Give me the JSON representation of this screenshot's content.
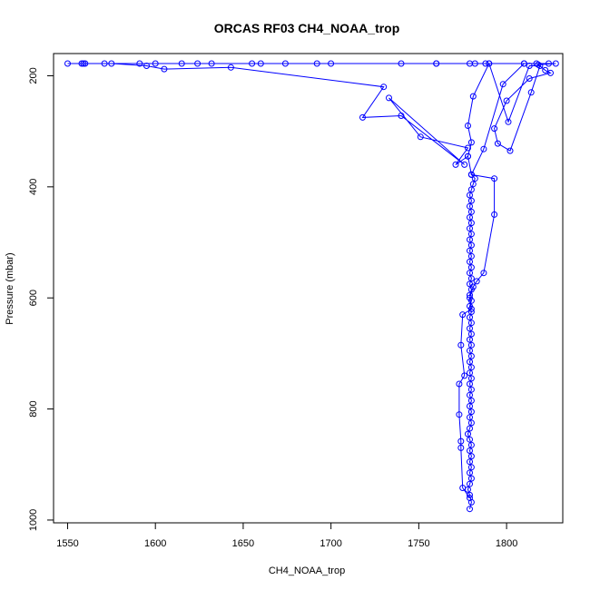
{
  "chart_data": {
    "type": "line",
    "title": "ORCAS RF03 CH4_NOAA_trop",
    "xlabel": "CH4_NOAA_trop",
    "ylabel": "Pressure (mbar)",
    "xlim": [
      1542,
      1832
    ],
    "ylim": [
      1005,
      160
    ],
    "y_reversed": true,
    "grid": false,
    "legend": "none",
    "x_ticks": [
      1550,
      1600,
      1650,
      1700,
      1750,
      1800
    ],
    "y_ticks": [
      200,
      400,
      600,
      800,
      1000
    ],
    "series": [
      {
        "color": "#0000ff",
        "marker": "open-circle",
        "points": [
          [
            1779,
            980
          ],
          [
            1780,
            968
          ],
          [
            1779,
            955
          ],
          [
            1778,
            945
          ],
          [
            1779,
            935
          ],
          [
            1780,
            925
          ],
          [
            1779,
            915
          ],
          [
            1780,
            905
          ],
          [
            1779,
            895
          ],
          [
            1780,
            885
          ],
          [
            1779,
            875
          ],
          [
            1780,
            865
          ],
          [
            1779,
            855
          ],
          [
            1778,
            845
          ],
          [
            1779,
            835
          ],
          [
            1780,
            825
          ],
          [
            1779,
            815
          ],
          [
            1780,
            805
          ],
          [
            1779,
            795
          ],
          [
            1780,
            785
          ],
          [
            1779,
            775
          ],
          [
            1780,
            765
          ],
          [
            1779,
            755
          ],
          [
            1780,
            745
          ],
          [
            1779,
            735
          ],
          [
            1780,
            725
          ],
          [
            1779,
            715
          ],
          [
            1780,
            705
          ],
          [
            1779,
            695
          ],
          [
            1780,
            685
          ],
          [
            1779,
            675
          ],
          [
            1780,
            665
          ],
          [
            1779,
            655
          ],
          [
            1780,
            645
          ],
          [
            1779,
            635
          ],
          [
            1780,
            625
          ],
          [
            1779,
            615
          ],
          [
            1780,
            605
          ],
          [
            1779,
            595
          ],
          [
            1780,
            585
          ],
          [
            1779,
            575
          ],
          [
            1780,
            565
          ],
          [
            1779,
            555
          ],
          [
            1780,
            545
          ],
          [
            1779,
            535
          ],
          [
            1780,
            525
          ],
          [
            1779,
            515
          ],
          [
            1780,
            505
          ],
          [
            1779,
            495
          ],
          [
            1780,
            485
          ],
          [
            1779,
            475
          ],
          [
            1780,
            465
          ],
          [
            1779,
            455
          ],
          [
            1780,
            445
          ],
          [
            1779,
            435
          ],
          [
            1780,
            425
          ],
          [
            1779,
            415
          ],
          [
            1780,
            405
          ],
          [
            1781,
            395
          ],
          [
            1782,
            385
          ],
          [
            1780,
            378
          ],
          [
            1793,
            385
          ],
          [
            1793,
            450
          ],
          [
            1787,
            555
          ],
          [
            1783,
            570
          ],
          [
            1781,
            580
          ],
          [
            1779,
            600
          ],
          [
            1780,
            620
          ],
          [
            1775,
            630
          ],
          [
            1774,
            685
          ],
          [
            1776,
            740
          ],
          [
            1773,
            755
          ],
          [
            1773,
            810
          ],
          [
            1774,
            858
          ],
          [
            1774,
            870
          ],
          [
            1775,
            942
          ],
          [
            1779,
            960
          ]
        ]
      },
      {
        "color": "#0000ff",
        "marker": "open-circle",
        "points": [
          [
            1780,
            378
          ],
          [
            1778,
            345
          ],
          [
            1780,
            320
          ],
          [
            1778,
            290
          ],
          [
            1781,
            237
          ],
          [
            1790,
            178
          ],
          [
            1760,
            178
          ],
          [
            1740,
            178
          ],
          [
            1700,
            178
          ],
          [
            1692,
            178
          ],
          [
            1674,
            178
          ],
          [
            1655,
            178
          ],
          [
            1632,
            178
          ],
          [
            1624,
            178
          ],
          [
            1615,
            178
          ],
          [
            1600,
            178
          ],
          [
            1591,
            178
          ],
          [
            1571,
            178
          ],
          [
            1560,
            178
          ],
          [
            1558,
            178
          ],
          [
            1550,
            178
          ],
          [
            1575,
            178
          ],
          [
            1595,
            182
          ],
          [
            1605,
            188
          ],
          [
            1643,
            185
          ],
          [
            1730,
            220
          ],
          [
            1718,
            275
          ],
          [
            1740,
            272
          ],
          [
            1776,
            360
          ],
          [
            1733,
            240
          ],
          [
            1751,
            310
          ],
          [
            1778,
            330
          ],
          [
            1771,
            360
          ],
          [
            1778,
            345
          ]
        ]
      },
      {
        "color": "#0000ff",
        "marker": "open-circle",
        "points": [
          [
            1780,
            378
          ],
          [
            1787,
            332
          ],
          [
            1798,
            215
          ],
          [
            1810,
            178
          ],
          [
            1824,
            178
          ],
          [
            1828,
            178
          ],
          [
            1818,
            180
          ],
          [
            1822,
            190
          ],
          [
            1825,
            195
          ],
          [
            1813,
            205
          ],
          [
            1800,
            245
          ],
          [
            1793,
            295
          ],
          [
            1795,
            322
          ],
          [
            1802,
            335
          ],
          [
            1814,
            230
          ],
          [
            1819,
            182
          ],
          [
            1813,
            182
          ],
          [
            1801,
            283
          ],
          [
            1790,
            178
          ],
          [
            1782,
            178
          ],
          [
            1779,
            178
          ],
          [
            1810,
            178
          ],
          [
            1817,
            178
          ],
          [
            1788,
            178
          ],
          [
            1760,
            178
          ],
          [
            1660,
            178
          ],
          [
            1559,
            178
          ]
        ]
      }
    ]
  }
}
